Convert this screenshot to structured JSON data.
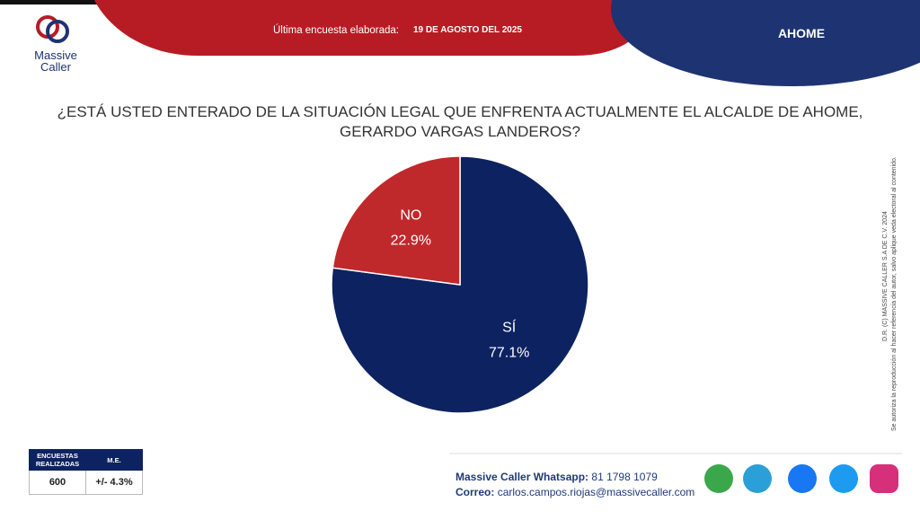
{
  "header": {
    "logo_top": "Massive",
    "logo_bottom": "Caller",
    "label": "Última encuesta elaborada:",
    "date": "19 DE AGOSTO DEL 2025",
    "region": "AHOME"
  },
  "chart_data": {
    "type": "pie",
    "title": "¿ESTÁ USTED ENTERADO DE LA SITUACIÓN LEGAL QUE ENFRENTA ACTUALMENTE EL ALCALDE DE AHOME, GERARDO VARGAS LANDEROS?",
    "categories": [
      "SÍ",
      "NO"
    ],
    "values": [
      77.1,
      22.9
    ],
    "value_labels": [
      "77.1%",
      "22.9%"
    ],
    "colors": [
      "#0d2260",
      "#c0292b"
    ]
  },
  "legal": [
    "D.R. (C) MASSIVE CALLER S.A DE C.V. 2024",
    "Se autoriza la reproducción al hacer referencia del autor, salvo aplique veda electoral al contenido."
  ],
  "table": {
    "headers": [
      "ENCUESTAS REALIZADAS",
      "M.E."
    ],
    "rows": [
      [
        "600",
        "+/- 4.3%"
      ]
    ]
  },
  "footer": {
    "whatsapp_label": "Massive Caller Whatsapp:",
    "whatsapp": "81 1798 1079",
    "email_label": "Correo:",
    "email": "carlos.campos.riojas@massivecaller.com"
  }
}
